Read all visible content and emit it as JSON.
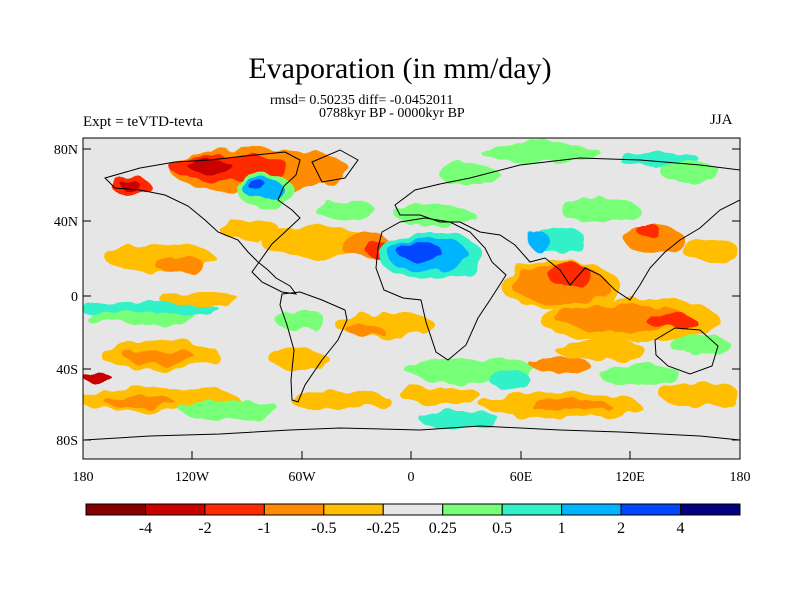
{
  "header": {
    "title": "Evaporation (in mm/day)",
    "stats": "rmsd= 0.50235 diff= -0.0452011",
    "period": "0788kyr BP - 0000kyr BP",
    "left_string": "Expt = teVTD-tevta",
    "right_string": "JJA"
  },
  "axes": {
    "lat_ticks": [
      "80N",
      "40N",
      "0",
      "40S",
      "80S"
    ],
    "lon_ticks": [
      "180",
      "120W",
      "60W",
      "0",
      "60E",
      "120E",
      "180"
    ]
  },
  "colorbar": {
    "labels": [
      "-4",
      "-2",
      "-1",
      "-0.5",
      "-0.25",
      "0.25",
      "0.5",
      "1",
      "2",
      "4"
    ],
    "colors": [
      "#870000",
      "#c80000",
      "#ff2a00",
      "#ff8c00",
      "#ffbe00",
      "#e6e6e6",
      "#78ff78",
      "#32f0c8",
      "#00b4ff",
      "#0046ff",
      "#000080"
    ]
  },
  "colors": {
    "land_outline": "#000000",
    "neutral_fill": "#e6e6e6"
  }
}
